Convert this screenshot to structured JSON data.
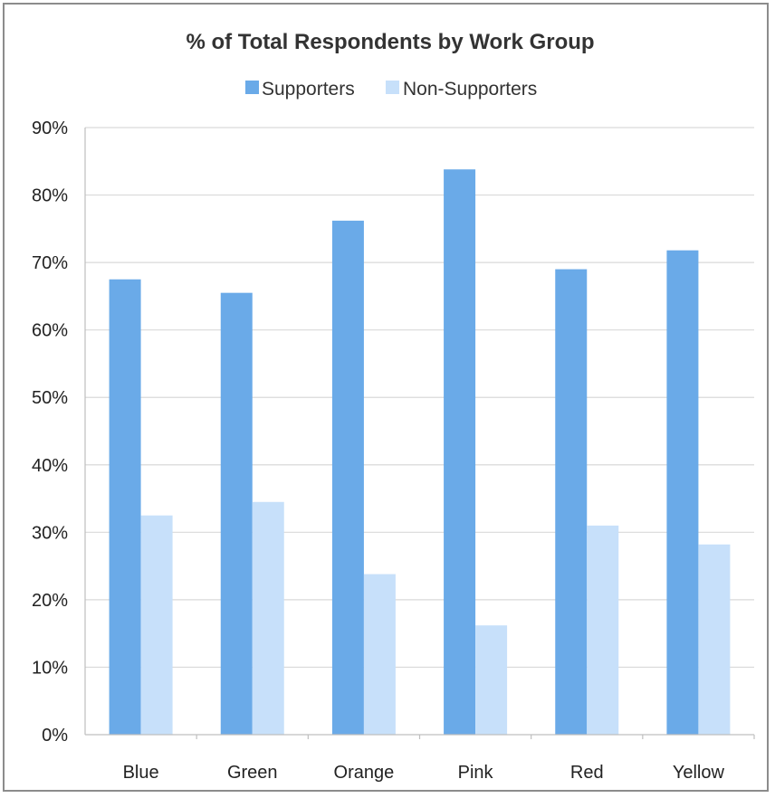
{
  "chart_data": {
    "type": "bar",
    "title": "% of Total Respondents by Work Group",
    "xlabel": "",
    "ylabel": "",
    "categories": [
      "Blue",
      "Green",
      "Orange",
      "Pink",
      "Red",
      "Yellow"
    ],
    "series": [
      {
        "name": "Supporters",
        "values": [
          67.5,
          65.5,
          76.2,
          83.8,
          69.0,
          71.8
        ],
        "color": "#6aaae8"
      },
      {
        "name": "Non-Supporters",
        "values": [
          32.5,
          34.5,
          23.8,
          16.2,
          31.0,
          28.2
        ],
        "color": "#c7e0fa"
      }
    ],
    "ylim": [
      0,
      90
    ],
    "yticks": [
      "0%",
      "10%",
      "20%",
      "30%",
      "40%",
      "50%",
      "60%",
      "70%",
      "80%",
      "90%"
    ],
    "grid": true,
    "legend": "top"
  }
}
